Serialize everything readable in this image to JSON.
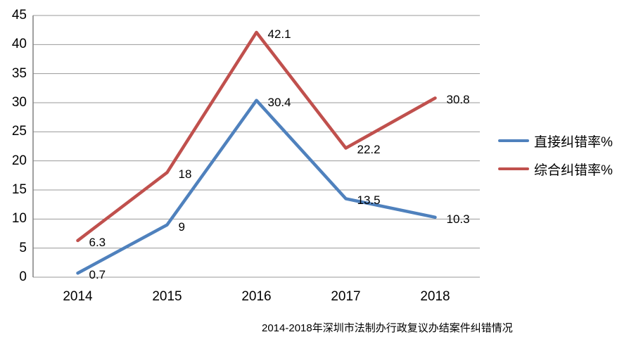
{
  "chart_data": {
    "type": "line",
    "title": "2014-2018年深圳市法制办行政复议办结案件纠错情况",
    "categories": [
      "2014",
      "2015",
      "2016",
      "2017",
      "2018"
    ],
    "series": [
      {
        "name": "直接纠错率%",
        "color": "#4F81BD",
        "values": [
          0.7,
          9,
          30.4,
          13.5,
          10.3
        ],
        "labels": [
          "0.7",
          "9",
          "30.4",
          "13.5",
          "10.3"
        ]
      },
      {
        "name": "综合纠错率%",
        "color": "#C0504D",
        "values": [
          6.3,
          18,
          42.1,
          22.2,
          30.8
        ],
        "labels": [
          "6.3",
          "18",
          "42.1",
          "22.2",
          "30.8"
        ]
      }
    ],
    "ylim": [
      0,
      45
    ],
    "ytick_step": 5,
    "yticks": [
      0,
      5,
      10,
      15,
      20,
      25,
      30,
      35,
      40,
      45
    ],
    "grid": true,
    "legend_position": "right",
    "gridline_color": "#9A9A9A",
    "axis_line_color": "#808080",
    "label_color": "#000000"
  }
}
